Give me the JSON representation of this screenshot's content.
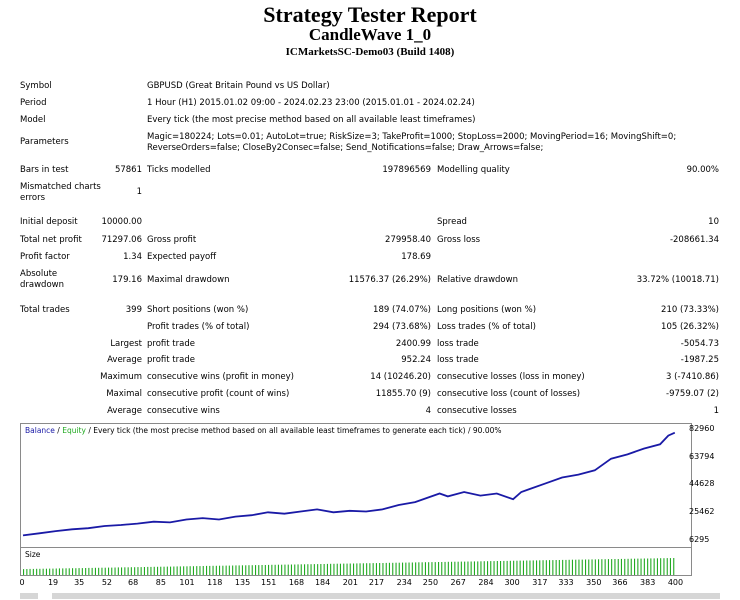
{
  "header": {
    "title": "Strategy Tester Report",
    "expert": "CandleWave 1_0",
    "server": "ICMarketsSC-Demo03 (Build 1408)"
  },
  "info": {
    "symbol_label": "Symbol",
    "symbol": "GBPUSD (Great Britain Pound vs US Dollar)",
    "period_label": "Period",
    "period": "1 Hour (H1) 2015.01.02 09:00 - 2024.02.23 23:00 (2015.01.01 - 2024.02.24)",
    "model_label": "Model",
    "model": "Every tick (the most precise method based on all available least timeframes)",
    "params_label": "Parameters",
    "params_line1": "Magic=180224; Lots=0.01; AutoLot=true; RiskSize=3; TakeProfit=1000; StopLoss=2000; MovingPeriod=16; MovingShift=0;",
    "params_line2": "ReverseOrders=false; CloseBy2Consec=false; Send_Notifications=false; Draw_Arrows=false;",
    "bars_label": "Bars in test",
    "bars": "57861",
    "ticks_label": "Ticks modelled",
    "ticks": "197896569",
    "quality_label": "Modelling quality",
    "quality": "90.00%",
    "mismatch_label1": "Mismatched charts",
    "mismatch_label2": "errors",
    "mismatch": "1"
  },
  "results": {
    "deposit_label": "Initial deposit",
    "deposit": "10000.00",
    "spread_label": "Spread",
    "spread": "10",
    "netprofit_label": "Total net profit",
    "netprofit": "71297.06",
    "grossprofit_label": "Gross profit",
    "grossprofit": "279958.40",
    "grossloss_label": "Gross loss",
    "grossloss": "-208661.34",
    "pf_label": "Profit factor",
    "pf": "1.34",
    "payoff_label": "Expected payoff",
    "payoff": "178.69",
    "absdd_label1": "Absolute",
    "absdd_label2": "drawdown",
    "absdd": "179.16",
    "maxdd_label": "Maximal drawdown",
    "maxdd": "11576.37 (26.29%)",
    "reldd_label": "Relative drawdown",
    "reldd": "33.72% (10018.71)",
    "trades_label": "Total trades",
    "trades": "399",
    "short_label": "Short positions (won %)",
    "short": "189 (74.07%)",
    "long_label": "Long positions (won %)",
    "long": "210 (73.33%)",
    "ptrades_label": "Profit trades (% of total)",
    "ptrades": "294 (73.68%)",
    "ltrades_label": "Loss trades (% of total)",
    "ltrades": "105 (26.32%)",
    "largest_label": "Largest",
    "lp_label": "profit trade",
    "lp": "2400.99",
    "ll_label": "loss trade",
    "ll": "-5054.73",
    "average_label": "Average",
    "ap_label": "profit trade",
    "ap": "952.24",
    "al_label": "loss trade",
    "al": "-1987.25",
    "maximum_label": "Maximum",
    "mcw_label": "consecutive wins (profit in money)",
    "mcw": "14 (10246.20)",
    "mcl_label": "consecutive losses (loss in money)",
    "mcl": "3 (-7410.86)",
    "maximal_label": "Maximal",
    "mcp_label": "consecutive profit (count of wins)",
    "mcp": "11855.70 (9)",
    "mclc_label": "consecutive loss (count of losses)",
    "mclc": "-9759.07 (2)",
    "average2_label": "Average",
    "acw_label": "consecutive wins",
    "acw": "4",
    "acl_label": "consecutive losses",
    "acl": "1"
  },
  "chart_caption": {
    "balance": "Balance",
    "sep1": " / ",
    "equity": "Equity",
    "rest": " / Every tick (the most precise method based on all available least timeframes to generate each tick) / 90.00%",
    "size": "Size"
  },
  "colors": {
    "balance": "#1a1aa6",
    "equity": "#22aa22",
    "size_bar": "#22aa22"
  },
  "chart_data": {
    "type": "line",
    "title": "",
    "x_ticks": [
      0,
      19,
      35,
      52,
      68,
      85,
      101,
      118,
      135,
      151,
      168,
      184,
      201,
      217,
      234,
      250,
      267,
      284,
      300,
      317,
      333,
      350,
      366,
      383,
      400
    ],
    "y_ticks": [
      6295,
      25462,
      44628,
      63794,
      82960
    ],
    "xlim": [
      0,
      404
    ],
    "ylim": [
      2000,
      87000
    ],
    "series": [
      {
        "name": "Balance",
        "x": [
          0,
          10,
          20,
          30,
          40,
          50,
          60,
          70,
          80,
          90,
          100,
          110,
          120,
          130,
          140,
          150,
          160,
          170,
          180,
          190,
          200,
          210,
          220,
          230,
          240,
          250,
          255,
          260,
          270,
          280,
          290,
          300,
          305,
          310,
          320,
          330,
          340,
          350,
          360,
          370,
          380,
          390,
          395,
          399
        ],
        "y": [
          10000,
          11500,
          13000,
          14200,
          15000,
          16500,
          17200,
          18200,
          19500,
          19000,
          21000,
          22000,
          21000,
          23000,
          24000,
          26000,
          25000,
          26500,
          28000,
          26000,
          27000,
          26500,
          28000,
          31000,
          33000,
          37000,
          39000,
          37000,
          40000,
          37500,
          39000,
          35000,
          40000,
          42000,
          46000,
          50000,
          52000,
          55000,
          63000,
          66000,
          70000,
          73000,
          79000,
          81000
        ]
      }
    ],
    "size": {
      "x_from": 0,
      "x_to": 399,
      "start": 0.35,
      "end": 1.0
    }
  }
}
